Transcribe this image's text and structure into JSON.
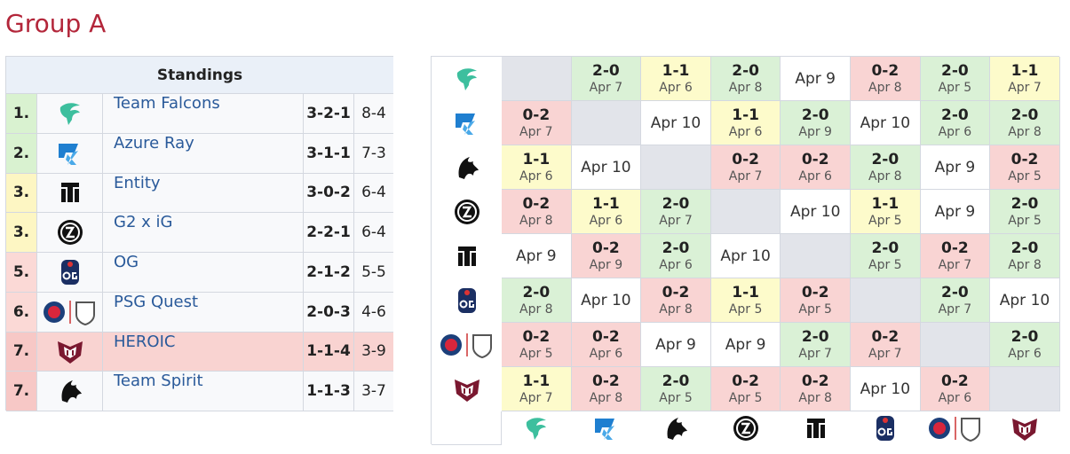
{
  "header": {
    "title": "Group A"
  },
  "standings": {
    "title": "Standings",
    "rows": [
      {
        "rank": "1.",
        "team": "Team Falcons",
        "score": "3-2-1",
        "games": "8-4",
        "rank_color": "#d9f2d0",
        "row_color": "#f8f9fb"
      },
      {
        "rank": "2.",
        "team": "Azure Ray",
        "score": "3-1-1",
        "games": "7-3",
        "rank_color": "#d9f2d0",
        "row_color": "#f8f9fb"
      },
      {
        "rank": "3.",
        "team": "Entity",
        "score": "3-0-2",
        "games": "6-4",
        "rank_color": "#fdf6c3",
        "row_color": "#f8f9fb"
      },
      {
        "rank": "3.",
        "team": "G2 x iG",
        "score": "2-2-1",
        "games": "6-4",
        "rank_color": "#fdf6c3",
        "row_color": "#f8f9fb"
      },
      {
        "rank": "5.",
        "team": "OG",
        "score": "2-1-2",
        "games": "5-5",
        "rank_color": "#fbd9d6",
        "row_color": "#f8f9fb"
      },
      {
        "rank": "6.",
        "team": "PSG Quest",
        "score": "2-0-3",
        "games": "4-6",
        "rank_color": "#fbd9d6",
        "row_color": "#f8f9fb"
      },
      {
        "rank": "7.",
        "team": "HEROIC",
        "score": "1-1-4",
        "games": "3-9",
        "rank_color": "#f7c8c6",
        "row_color": "#f9d3d1"
      },
      {
        "rank": "7.",
        "team": "Team Spirit",
        "score": "1-1-3",
        "games": "3-7",
        "rank_color": "#f7c8c6",
        "row_color": "#f8f9fb"
      }
    ]
  },
  "matrix": {
    "colors": {
      "2-0": "#daf1d6",
      "1-1": "#fdfbcb",
      "0-2": "#f9d4d3",
      "date": "#ffffff",
      "self": "#e2e4ea"
    },
    "rows": [
      [
        null,
        {
          "score": "2-0",
          "date": "Apr 7"
        },
        {
          "score": "1-1",
          "date": "Apr 6"
        },
        {
          "score": "2-0",
          "date": "Apr 8"
        },
        {
          "date": "Apr 9"
        },
        {
          "score": "0-2",
          "date": "Apr 8"
        },
        {
          "score": "2-0",
          "date": "Apr 5"
        },
        {
          "score": "1-1",
          "date": "Apr 7"
        }
      ],
      [
        {
          "score": "0-2",
          "date": "Apr 7"
        },
        null,
        {
          "date": "Apr 10"
        },
        {
          "score": "1-1",
          "date": "Apr 6"
        },
        {
          "score": "2-0",
          "date": "Apr 9"
        },
        {
          "date": "Apr 10"
        },
        {
          "score": "2-0",
          "date": "Apr 6"
        },
        {
          "score": "2-0",
          "date": "Apr 8"
        }
      ],
      [
        {
          "score": "1-1",
          "date": "Apr 6"
        },
        {
          "date": "Apr 10"
        },
        null,
        {
          "score": "0-2",
          "date": "Apr 7"
        },
        {
          "score": "0-2",
          "date": "Apr 6"
        },
        {
          "score": "2-0",
          "date": "Apr 8"
        },
        {
          "date": "Apr 9"
        },
        {
          "score": "0-2",
          "date": "Apr 5"
        }
      ],
      [
        {
          "score": "0-2",
          "date": "Apr 8"
        },
        {
          "score": "1-1",
          "date": "Apr 6"
        },
        {
          "score": "2-0",
          "date": "Apr 7"
        },
        null,
        {
          "date": "Apr 10"
        },
        {
          "score": "1-1",
          "date": "Apr 5"
        },
        {
          "date": "Apr 9"
        },
        {
          "score": "2-0",
          "date": "Apr 5"
        }
      ],
      [
        {
          "date": "Apr 9"
        },
        {
          "score": "0-2",
          "date": "Apr 9"
        },
        {
          "score": "2-0",
          "date": "Apr 6"
        },
        {
          "date": "Apr 10"
        },
        null,
        {
          "score": "2-0",
          "date": "Apr 5"
        },
        {
          "score": "0-2",
          "date": "Apr 7"
        },
        {
          "score": "2-0",
          "date": "Apr 8"
        }
      ],
      [
        {
          "score": "2-0",
          "date": "Apr 8"
        },
        {
          "date": "Apr 10"
        },
        {
          "score": "0-2",
          "date": "Apr 8"
        },
        {
          "score": "1-1",
          "date": "Apr 5"
        },
        {
          "score": "0-2",
          "date": "Apr 5"
        },
        null,
        {
          "score": "2-0",
          "date": "Apr 7"
        },
        {
          "date": "Apr 10"
        }
      ],
      [
        {
          "score": "0-2",
          "date": "Apr 5"
        },
        {
          "score": "0-2",
          "date": "Apr 6"
        },
        {
          "date": "Apr 9"
        },
        {
          "date": "Apr 9"
        },
        {
          "score": "2-0",
          "date": "Apr 7"
        },
        {
          "score": "0-2",
          "date": "Apr 7"
        },
        null,
        {
          "score": "2-0",
          "date": "Apr 6"
        }
      ],
      [
        {
          "score": "1-1",
          "date": "Apr 7"
        },
        {
          "score": "0-2",
          "date": "Apr 8"
        },
        {
          "score": "2-0",
          "date": "Apr 5"
        },
        {
          "score": "0-2",
          "date": "Apr 5"
        },
        {
          "score": "0-2",
          "date": "Apr 8"
        },
        {
          "date": "Apr 10"
        },
        {
          "score": "0-2",
          "date": "Apr 6"
        },
        null
      ]
    ]
  }
}
